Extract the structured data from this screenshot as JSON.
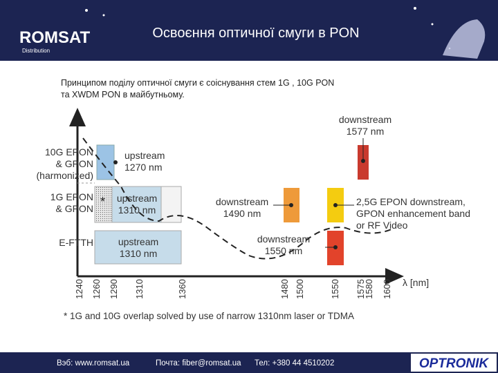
{
  "header": {
    "title": "Освоєння оптичної смуги в PON",
    "logo": "ROMSAT",
    "logo_sub": "Distribution"
  },
  "intro": [
    "Принципом поділу оптичної смуги є соіснування стем 1G , 10G PON",
    "та XWDM PON в майбутньому."
  ],
  "diagram": {
    "row_labels": [
      [
        "10G EPON",
        "& GPON",
        "(harmonized)"
      ],
      [
        "1G EPON",
        "& GPON"
      ],
      [
        "E-FTTH"
      ]
    ],
    "bands": [
      {
        "lines": [
          "upstream",
          "1270 nm"
        ]
      },
      {
        "lines": [
          "upstream",
          "1310 nm"
        ]
      },
      {
        "lines": [
          "upstream",
          "1310 nm"
        ]
      },
      {
        "lines": [
          "downstream",
          "1490 nm"
        ]
      },
      {
        "lines": [
          "2,5G EPON downstream,",
          "GPON enhancement band",
          "or RF Video"
        ]
      },
      {
        "lines": [
          "downstream",
          "1550 nm"
        ]
      },
      {
        "lines": [
          "downstream",
          "1577 nm"
        ]
      }
    ],
    "asterisk": "*",
    "axis_label": "λ [nm]",
    "xticks": [
      1240,
      1260,
      1290,
      1310,
      1360,
      1480,
      1500,
      1550,
      1575,
      1580,
      1600
    ],
    "footnote": "* 1G and 10G overlap solved by use of narrow 1310nm laser or TDMA"
  },
  "footer": {
    "web": "Вэб: www.romsat.ua",
    "email": "Почта: fiber@romsat.ua",
    "phone": "Тел: +380 44 4510202",
    "brand": "OPTRONIK"
  }
}
